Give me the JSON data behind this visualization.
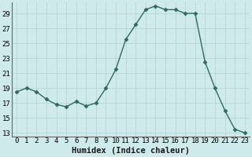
{
  "x": [
    0,
    1,
    2,
    3,
    4,
    5,
    6,
    7,
    8,
    9,
    10,
    11,
    12,
    13,
    14,
    15,
    16,
    17,
    18,
    19,
    20,
    21,
    22,
    23
  ],
  "y": [
    18.5,
    19.0,
    18.5,
    17.5,
    16.8,
    16.5,
    17.2,
    16.6,
    17.0,
    19.0,
    21.5,
    25.5,
    27.5,
    29.5,
    30.0,
    29.5,
    29.5,
    29.0,
    29.0,
    22.5,
    19.0,
    16.0,
    13.5,
    13.0
  ],
  "line_color": "#2e6b5e",
  "marker": "D",
  "marker_size": 2.5,
  "bg_color": "#ceeaea",
  "grid_major_color": "#b8d4d4",
  "grid_minor_color": "#d8ecec",
  "xlabel": "Humidex (Indice chaleur)",
  "ylabel_ticks": [
    13,
    15,
    17,
    19,
    21,
    23,
    25,
    27,
    29
  ],
  "ylim": [
    12.5,
    30.5
  ],
  "xlim": [
    -0.5,
    23.5
  ],
  "tick_label_fontsize": 6.5,
  "xlabel_fontsize": 7.5
}
